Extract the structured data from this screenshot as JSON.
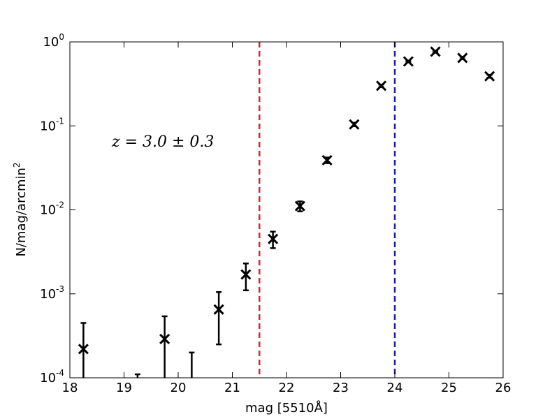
{
  "chart_data": {
    "type": "errorbar-scatter",
    "xlabel": "mag [5510Å]",
    "ylabel": "N/mag/arcmin",
    "ylabel_sup": "2",
    "annotation": "z = 3.0 ± 0.3",
    "log_y": true,
    "color": "#000000",
    "x": [
      18.25,
      19.25,
      19.75,
      20.25,
      20.75,
      21.25,
      21.75,
      22.25,
      22.75,
      23.25,
      23.75,
      24.25,
      24.75,
      25.25,
      25.75
    ],
    "values": [
      0.00022,
      0,
      0.00029,
      0,
      0.00065,
      0.0017,
      0.0045,
      0.0111,
      0.039,
      0.104,
      0.3,
      0.585,
      0.765,
      0.644,
      0.39
    ],
    "errors": [
      0.00023,
      0.00011,
      0.00025,
      0.0002,
      0.0004,
      0.0006,
      0.001,
      0.0015,
      0.003,
      0.005,
      0.01,
      0.015,
      0.02,
      0.02,
      0.015
    ],
    "vlines": [
      {
        "x": 21.5,
        "color": "#d62728"
      },
      {
        "x": 24.0,
        "color": "#1a1aa6"
      }
    ],
    "xlim": [
      18,
      26
    ],
    "xticks": [
      18,
      19,
      20,
      21,
      22,
      23,
      24,
      25,
      26
    ],
    "ylim": [
      0.0001,
      1
    ],
    "yticks": [
      {
        "value": 0.0001,
        "label": "10",
        "exp": "-4"
      },
      {
        "value": 0.001,
        "label": "10",
        "exp": "-3"
      },
      {
        "value": 0.01,
        "label": "10",
        "exp": "-2"
      },
      {
        "value": 0.1,
        "label": "10",
        "exp": "-1"
      },
      {
        "value": 1,
        "label": "10",
        "exp": "0"
      }
    ]
  }
}
